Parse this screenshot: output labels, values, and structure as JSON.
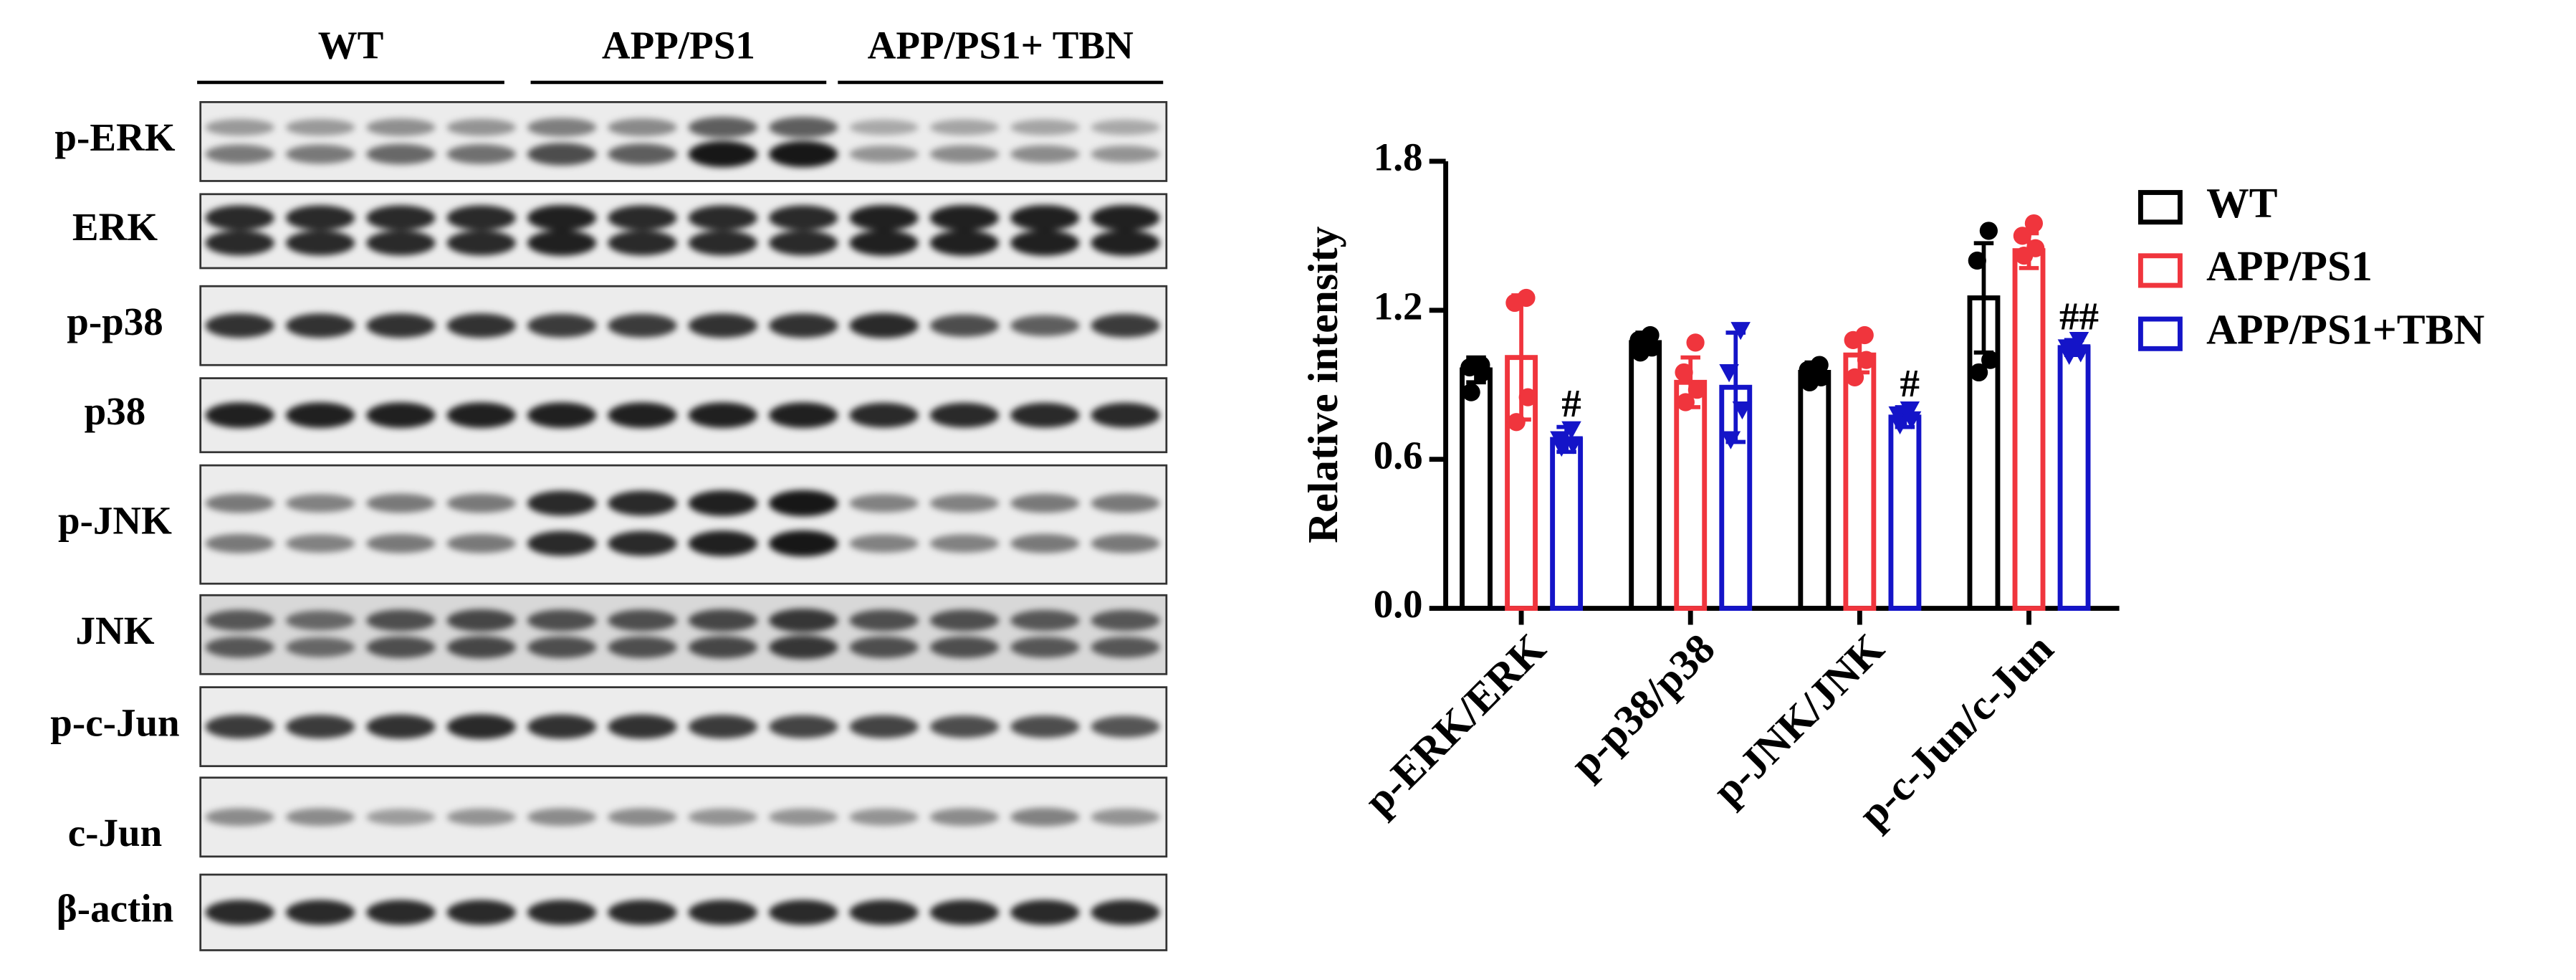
{
  "blot": {
    "groups": [
      "WT",
      "APP/PS1",
      "APP/PS1+ TBN"
    ],
    "rows": [
      "p-ERK",
      "ERK",
      "p-p38",
      "p38",
      "p-JNK",
      "JNK",
      "p-c-Jun",
      "c-Jun",
      "β-actin"
    ]
  },
  "chart_data": {
    "type": "bar",
    "ylabel": "Relative intensity",
    "categories": [
      "p-ERK/ERK",
      "p-p38/p38",
      "p-JNK/JNK",
      "p-c-Jun/c-Jun"
    ],
    "series": [
      {
        "name": "WT",
        "color": "#000000",
        "marker": "circle",
        "values": [
          0.96,
          1.07,
          0.95,
          1.25
        ],
        "errors": [
          0.05,
          0.04,
          0.04,
          0.22
        ],
        "points": [
          [
            0.98,
            0.97,
            0.95,
            0.87
          ],
          [
            1.1,
            1.08,
            1.05,
            1.03
          ],
          [
            0.98,
            0.96,
            0.93,
            0.91
          ],
          [
            1.52,
            1.4,
            1.0,
            0.95
          ]
        ]
      },
      {
        "name": "APP/PS1",
        "color": "#f0353d",
        "marker": "circle",
        "values": [
          1.01,
          0.91,
          1.02,
          1.44
        ],
        "errors": [
          0.25,
          0.1,
          0.07,
          0.07
        ],
        "points": [
          [
            1.25,
            1.23,
            0.85,
            0.75
          ],
          [
            1.07,
            0.95,
            0.88,
            0.83
          ],
          [
            1.1,
            1.08,
            1.0,
            0.93
          ],
          [
            1.55,
            1.5,
            1.45,
            1.42
          ]
        ]
      },
      {
        "name": "APP/PS1+TBN",
        "color": "#1414c8",
        "marker": "triangle-down",
        "values": [
          0.68,
          0.89,
          0.77,
          1.05
        ],
        "errors": [
          0.05,
          0.22,
          0.04,
          0.03
        ],
        "points": [
          [
            0.72,
            0.68,
            0.66,
            0.65
          ],
          [
            1.12,
            0.95,
            0.8,
            0.68
          ],
          [
            0.8,
            0.78,
            0.76,
            0.74
          ],
          [
            1.08,
            1.05,
            1.03,
            1.02
          ]
        ],
        "annotations": [
          "#",
          null,
          "#",
          "##"
        ]
      }
    ],
    "ylim": [
      0,
      1.8
    ],
    "yticks": [
      {
        "value": 0,
        "label": "0.0"
      },
      {
        "value": 0.6,
        "label": "0.6"
      },
      {
        "value": 1.2,
        "label": "1.2"
      },
      {
        "value": 1.8,
        "label": "1.8"
      }
    ]
  }
}
